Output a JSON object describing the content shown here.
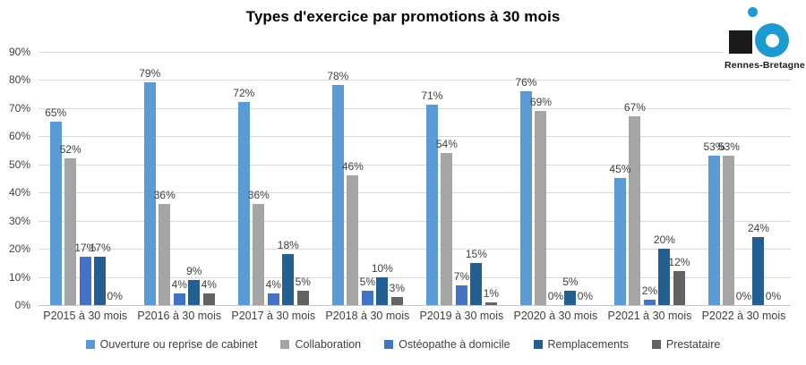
{
  "title": "Types d'exercice par promotions à 30 mois",
  "logo": {
    "text": "Rennes-Bretagne"
  },
  "colors": {
    "gridline": "#D9D9D9",
    "axis_line": "#C6C6C6",
    "text": "#404040",
    "logo_blue": "#1D9BD1",
    "logo_black": "#1A1A1A"
  },
  "chart_data": {
    "type": "bar",
    "title": "Types d'exercice par promotions à 30 mois",
    "categories": [
      "P2015 à 30 mois",
      "P2016 à 30 mois",
      "P2017 à 30 mois",
      "P2018 à 30 mois",
      "P2019 à 30 mois",
      "P2020 à 30 mois",
      "P2021 à 30 mois",
      "P2022 à 30 mois"
    ],
    "series": [
      {
        "name": "Ouverture ou reprise de cabinet",
        "color": "#5B9BD5",
        "values": [
          65,
          79,
          72,
          78,
          71,
          76,
          45,
          53
        ]
      },
      {
        "name": "Collaboration",
        "color": "#A5A5A5",
        "values": [
          52,
          36,
          36,
          46,
          54,
          69,
          67,
          53
        ]
      },
      {
        "name": "Ostéopathe à domicile",
        "color": "#4472C4",
        "values": [
          17,
          4,
          4,
          5,
          7,
          0,
          2,
          0
        ]
      },
      {
        "name": "Remplacements",
        "color": "#255E91",
        "values": [
          17,
          9,
          18,
          10,
          15,
          5,
          20,
          24
        ]
      },
      {
        "name": "Prestataire",
        "color": "#636363",
        "values": [
          0,
          4,
          5,
          3,
          1,
          0,
          12,
          0
        ]
      }
    ],
    "xlabel": "",
    "ylabel": "",
    "ylim": [
      0,
      90
    ],
    "yticks": [
      "0%",
      "10%",
      "20%",
      "30%",
      "40%",
      "50%",
      "60%",
      "70%",
      "80%",
      "90%"
    ],
    "value_suffix": "%",
    "grid": true,
    "legend_position": "bottom"
  }
}
